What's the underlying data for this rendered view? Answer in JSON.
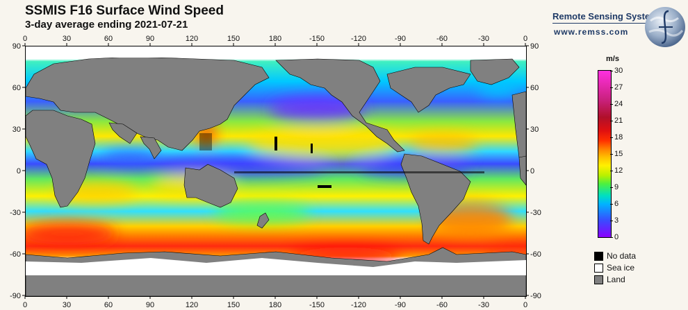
{
  "header": {
    "title": "SSMIS F16 Surface Wind Speed",
    "subtitle": "3-day average ending 2021-07-21"
  },
  "brand": {
    "name": "Remote Sensing Systems",
    "url": "www.remss.com"
  },
  "map": {
    "longitude_labels": [
      "0",
      "30",
      "60",
      "90",
      "120",
      "150",
      "180",
      "-150",
      "-120",
      "-90",
      "-60",
      "-30",
      "0"
    ],
    "latitude_labels": [
      "90",
      "60",
      "30",
      "0",
      "-30",
      "-60",
      "-90"
    ]
  },
  "colorbar": {
    "unit": "m/s",
    "labels": [
      "30",
      "27",
      "24",
      "21",
      "18",
      "15",
      "12",
      "9",
      "6",
      "3",
      "0"
    ],
    "min": 0,
    "max": 30
  },
  "legend": {
    "items": [
      {
        "label": "No data",
        "color": "#000000"
      },
      {
        "label": "Sea ice",
        "color": "#ffffff"
      },
      {
        "label": "Land",
        "color": "#808080"
      }
    ]
  }
}
